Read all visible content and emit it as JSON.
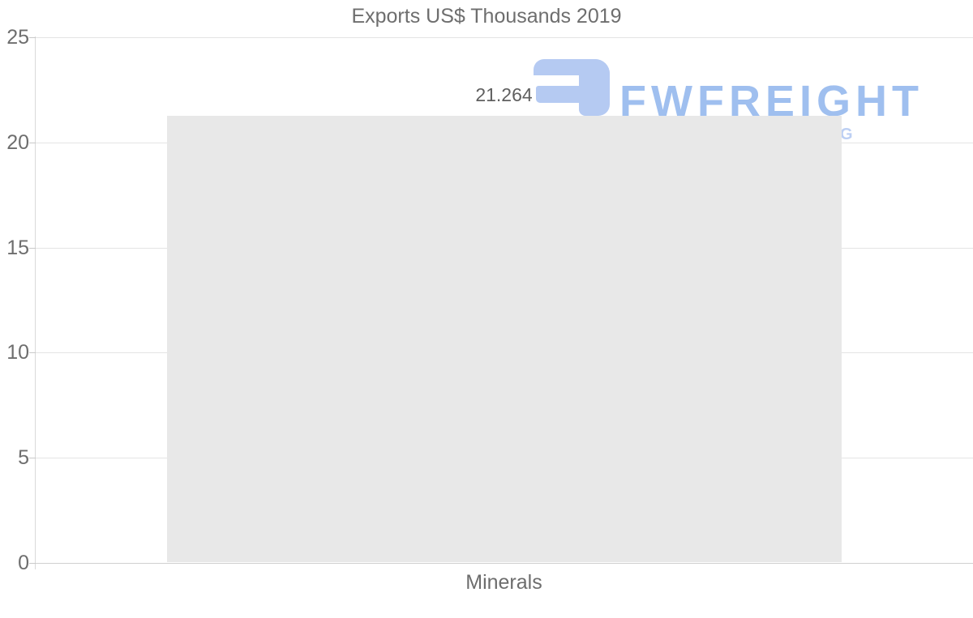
{
  "chart_data": {
    "type": "bar",
    "title": "Exports US$ Thousands 2019",
    "categories": [
      "Minerals"
    ],
    "values": [
      21.264
    ],
    "value_labels": [
      "21.264"
    ],
    "xlabel": "",
    "ylabel": "",
    "ylim": [
      0,
      25
    ],
    "yticks": [
      0,
      5,
      10,
      15,
      20,
      25
    ],
    "grid": true,
    "legend": false
  },
  "watermark": {
    "brand": "FWFREIGHT",
    "tagline_visible_text": "G",
    "icon": "fwfreight-logo-icon",
    "icon_color": "#b5caf2",
    "text_color": "#9fbfef",
    "tagline_color": "#bccff3"
  },
  "colors": {
    "title_text": "#6e6e6e",
    "axis_text": "#6e6e6e",
    "category_text": "#6d6d6d",
    "data_label_text": "#5f5f5f",
    "gridline": "#e4e4e4",
    "baseline": "#cfcfcf",
    "axis_line": "#dadada",
    "tick_mark": "#c9c9c9",
    "bar_fill": "#e8e8e8"
  }
}
